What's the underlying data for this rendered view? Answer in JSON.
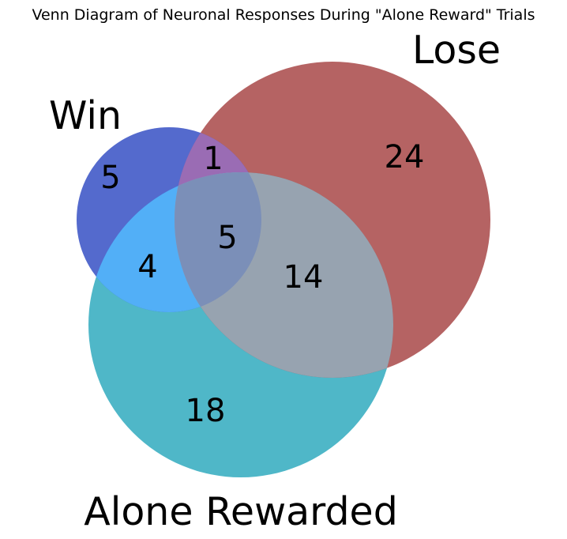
{
  "title": "Venn Diagram of Neuronal Responses During \"Alone Reward\" Trials",
  "sets": {
    "win": "Win",
    "lose": "Lose",
    "alone": "Alone Rewarded"
  },
  "regions": {
    "win_only": "5",
    "win_lose": "1",
    "lose_only": "24",
    "all_three": "5",
    "win_alone": "4",
    "lose_alone": "14",
    "alone_only": "18"
  },
  "colors": {
    "win": "#3c55c6",
    "lose": "#a23c3c",
    "alone": "#2ba8bd",
    "win_lose": "#9a6cb4",
    "win_alone": "#52aff7",
    "lose_alone": "#97a3b0",
    "all_three": "#7b8fb8"
  }
}
